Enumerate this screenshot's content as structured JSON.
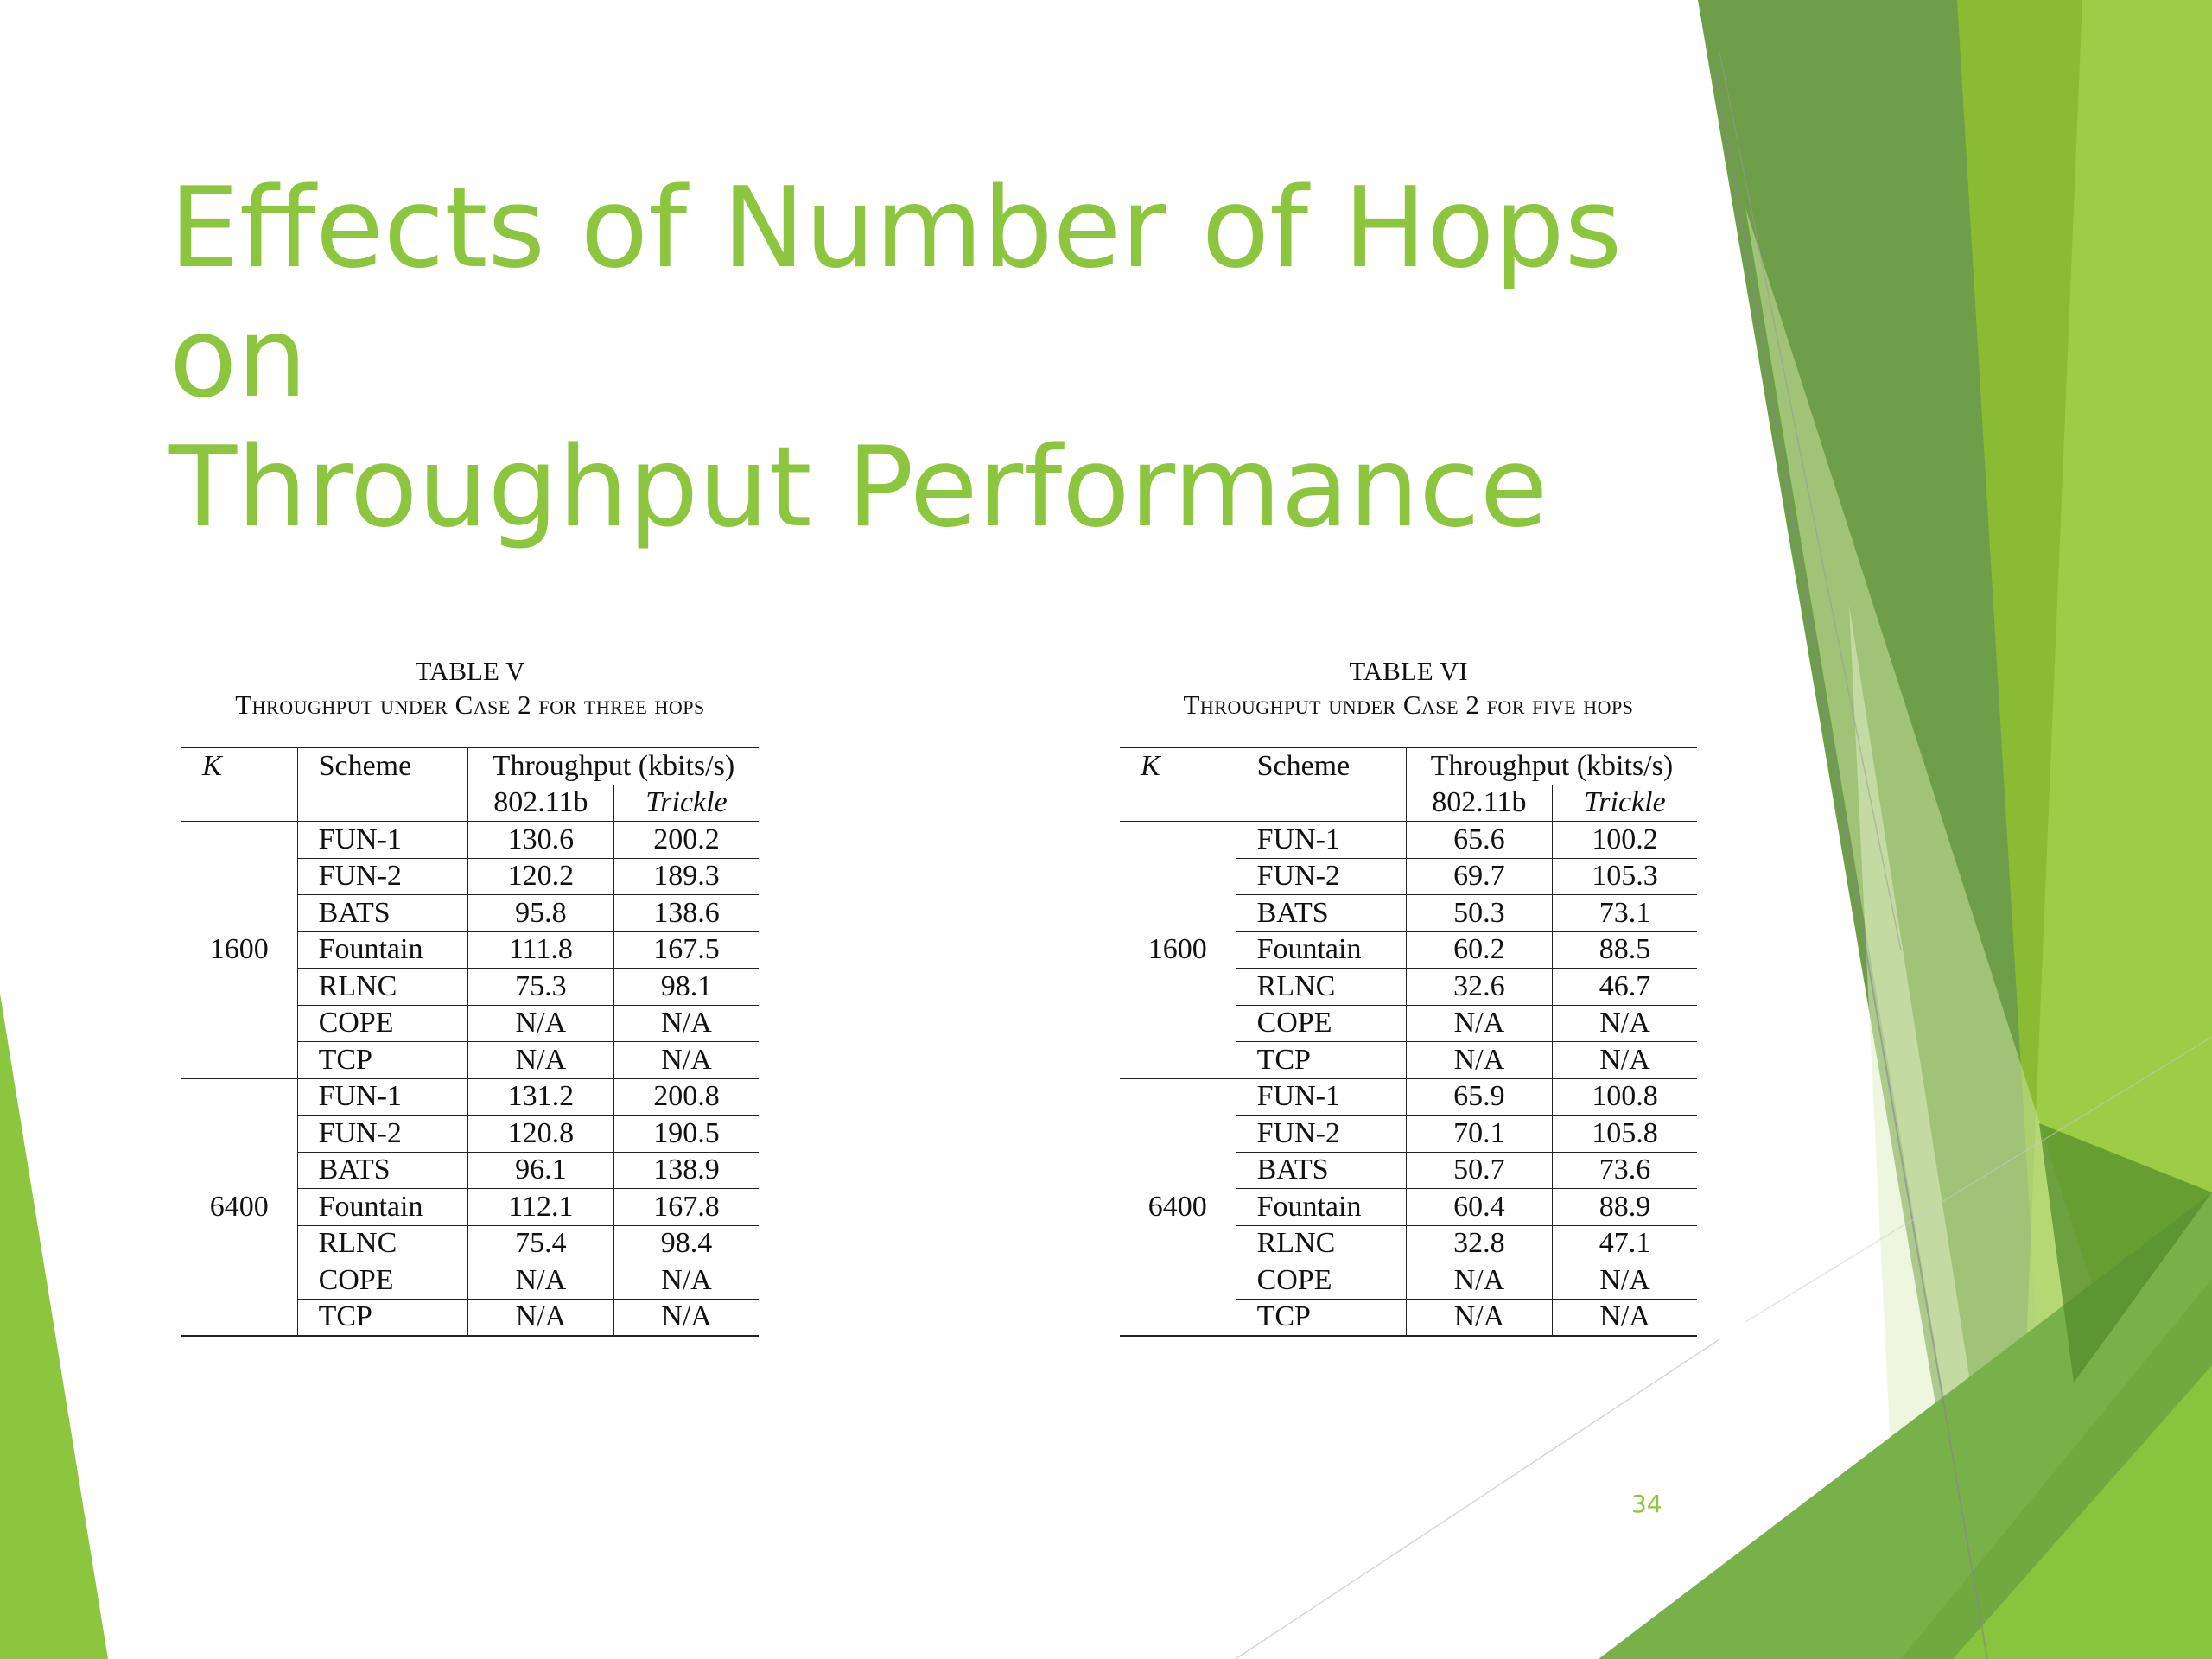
{
  "slide": {
    "title": "Effects of Number of Hops on\nThroughput Performance",
    "page_number": "34",
    "accent_color": "#8cc63f"
  },
  "tables": [
    {
      "caption_number": "TABLE V",
      "caption_title": "Throughput under Case 2 for three hops",
      "headers": {
        "k": "K",
        "scheme": "Scheme",
        "throughput": "Throughput (kbits/s)",
        "col1": "802.11b",
        "col2": "Trickle"
      },
      "groups": [
        {
          "k": "1600",
          "rows": [
            {
              "scheme": "FUN-1",
              "v1": "130.6",
              "v2": "200.2"
            },
            {
              "scheme": "FUN-2",
              "v1": "120.2",
              "v2": "189.3"
            },
            {
              "scheme": "BATS",
              "v1": "95.8",
              "v2": "138.6"
            },
            {
              "scheme": "Fountain",
              "v1": "111.8",
              "v2": "167.5"
            },
            {
              "scheme": "RLNC",
              "v1": "75.3",
              "v2": "98.1"
            },
            {
              "scheme": "COPE",
              "v1": "N/A",
              "v2": "N/A"
            },
            {
              "scheme": "TCP",
              "v1": "N/A",
              "v2": "N/A"
            }
          ]
        },
        {
          "k": "6400",
          "rows": [
            {
              "scheme": "FUN-1",
              "v1": "131.2",
              "v2": "200.8"
            },
            {
              "scheme": "FUN-2",
              "v1": "120.8",
              "v2": "190.5"
            },
            {
              "scheme": "BATS",
              "v1": "96.1",
              "v2": "138.9"
            },
            {
              "scheme": "Fountain",
              "v1": "112.1",
              "v2": "167.8"
            },
            {
              "scheme": "RLNC",
              "v1": "75.4",
              "v2": "98.4"
            },
            {
              "scheme": "COPE",
              "v1": "N/A",
              "v2": "N/A"
            },
            {
              "scheme": "TCP",
              "v1": "N/A",
              "v2": "N/A"
            }
          ]
        }
      ]
    },
    {
      "caption_number": "TABLE VI",
      "caption_title": "Throughput under Case 2 for five hops",
      "headers": {
        "k": "K",
        "scheme": "Scheme",
        "throughput": "Throughput (kbits/s)",
        "col1": "802.11b",
        "col2": "Trickle"
      },
      "groups": [
        {
          "k": "1600",
          "rows": [
            {
              "scheme": "FUN-1",
              "v1": "65.6",
              "v2": "100.2"
            },
            {
              "scheme": "FUN-2",
              "v1": "69.7",
              "v2": "105.3"
            },
            {
              "scheme": "BATS",
              "v1": "50.3",
              "v2": "73.1"
            },
            {
              "scheme": "Fountain",
              "v1": "60.2",
              "v2": "88.5"
            },
            {
              "scheme": "RLNC",
              "v1": "32.6",
              "v2": "46.7"
            },
            {
              "scheme": "COPE",
              "v1": "N/A",
              "v2": "N/A"
            },
            {
              "scheme": "TCP",
              "v1": "N/A",
              "v2": "N/A"
            }
          ]
        },
        {
          "k": "6400",
          "rows": [
            {
              "scheme": "FUN-1",
              "v1": "65.9",
              "v2": "100.8"
            },
            {
              "scheme": "FUN-2",
              "v1": "70.1",
              "v2": "105.8"
            },
            {
              "scheme": "BATS",
              "v1": "50.7",
              "v2": "73.6"
            },
            {
              "scheme": "Fountain",
              "v1": "60.4",
              "v2": "88.9"
            },
            {
              "scheme": "RLNC",
              "v1": "32.8",
              "v2": "47.1"
            },
            {
              "scheme": "COPE",
              "v1": "N/A",
              "v2": "N/A"
            },
            {
              "scheme": "TCP",
              "v1": "N/A",
              "v2": "N/A"
            }
          ]
        }
      ]
    }
  ]
}
